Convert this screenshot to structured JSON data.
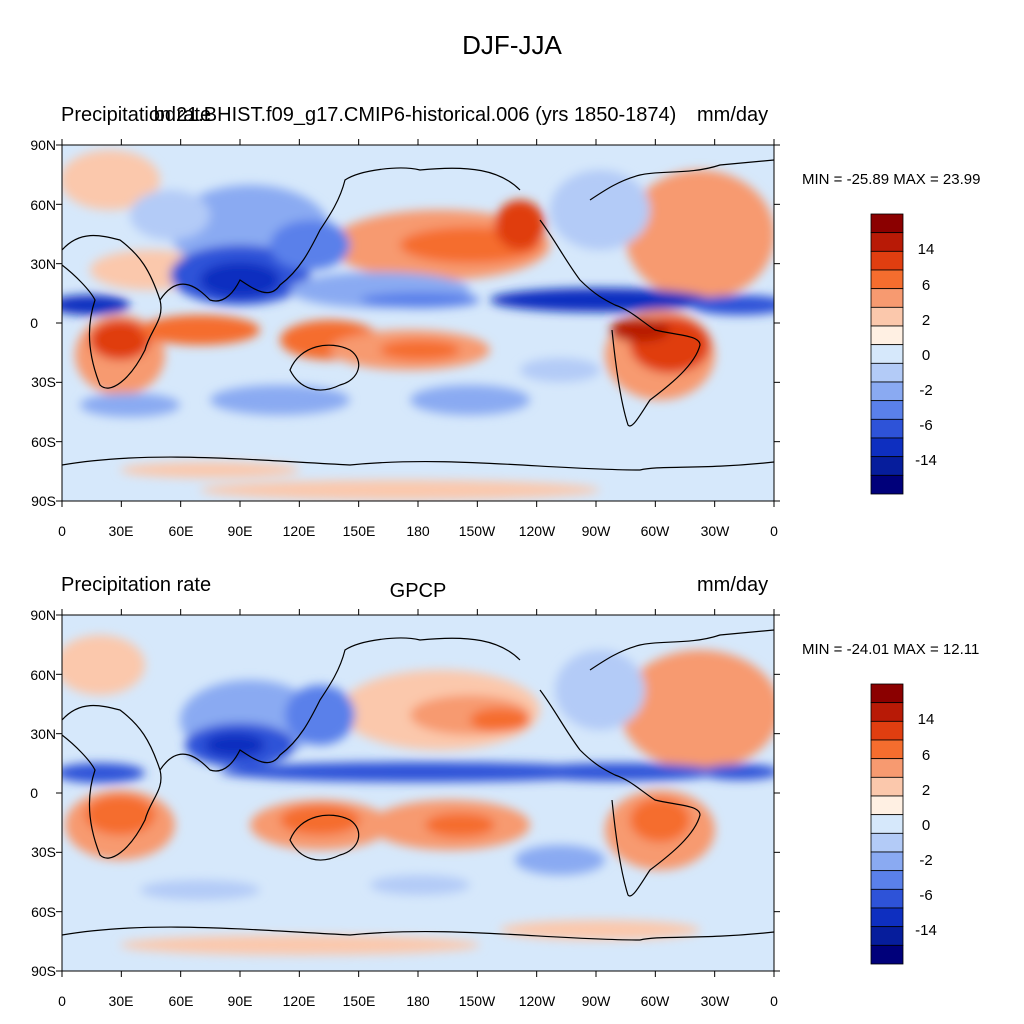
{
  "title": "DJF-JJA",
  "panels": [
    {
      "left_title": "Precipitation rate",
      "center_title": "bd21.BHIST.f09_g17.CMIP6-historical.006 (yrs 1850-1874)",
      "right_title": "mm/day",
      "minmax": "MIN = -25.89 MAX =  23.99"
    },
    {
      "left_title": "Precipitation rate",
      "center_title": "GPCP",
      "right_title": "mm/day",
      "minmax": "MIN = -24.01 MAX =  12.11"
    }
  ],
  "lat_ticks": [
    "90N",
    "60N",
    "30N",
    "0",
    "30S",
    "60S",
    "90S"
  ],
  "lon_ticks": [
    "0",
    "30E",
    "60E",
    "90E",
    "120E",
    "150E",
    "180",
    "150W",
    "120W",
    "90W",
    "60W",
    "30W",
    "0"
  ],
  "colorbar": {
    "colors": [
      "#8b0000",
      "#b81a06",
      "#e03e10",
      "#f56d2e",
      "#f79a70",
      "#fbc8ac",
      "#fff0e3",
      "#d6e8fb",
      "#b3cbf7",
      "#8aaaf2",
      "#5a80ea",
      "#2e53d8",
      "#0e2fc0",
      "#061d9c",
      "#00007a"
    ],
    "labels": [
      "14",
      "6",
      "2",
      "0",
      "-2",
      "-6",
      "-14"
    ]
  }
}
